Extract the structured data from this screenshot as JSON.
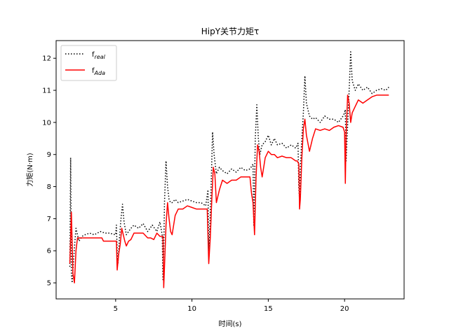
{
  "chart_data": {
    "type": "line",
    "title": "HipY关节力矩τ",
    "xlabel": "时间(s)",
    "ylabel": "力矩(N·m)",
    "xlim": [
      1.1,
      23.9
    ],
    "ylim": [
      4.5,
      12.55
    ],
    "xticks": [
      5,
      10,
      15,
      20
    ],
    "yticks": [
      5,
      6,
      7,
      8,
      9,
      10,
      11,
      12
    ],
    "grid": false,
    "legend_position": "upper-left",
    "series": [
      {
        "name": "f",
        "name_sub": "real",
        "color": "#000000",
        "style": "dotted",
        "x": [
          2.0,
          2.05,
          2.1,
          2.15,
          2.2,
          2.3,
          2.4,
          2.5,
          2.6,
          2.8,
          3.0,
          3.3,
          3.6,
          4.0,
          4.3,
          4.6,
          5.0,
          5.05,
          5.1,
          5.15,
          5.25,
          5.35,
          5.45,
          5.55,
          5.7,
          5.85,
          6.0,
          6.2,
          6.5,
          6.8,
          7.1,
          7.4,
          7.7,
          7.9,
          8.05,
          8.1,
          8.15,
          8.2,
          8.3,
          8.4,
          8.5,
          8.6,
          8.7,
          8.9,
          9.1,
          9.4,
          9.7,
          10.0,
          10.3,
          10.6,
          10.9,
          11.05,
          11.1,
          11.15,
          11.25,
          11.35,
          11.45,
          11.6,
          11.8,
          12.0,
          12.3,
          12.6,
          12.9,
          13.2,
          13.5,
          13.8,
          14.0,
          14.05,
          14.1,
          14.15,
          14.25,
          14.35,
          14.45,
          14.6,
          14.8,
          15.0,
          15.2,
          15.4,
          15.6,
          15.9,
          16.2,
          16.5,
          16.8,
          16.95,
          17.0,
          17.05,
          17.1,
          17.2,
          17.3,
          17.4,
          17.5,
          17.7,
          17.9,
          18.1,
          18.4,
          18.7,
          19.0,
          19.3,
          19.6,
          19.9,
          20.0,
          20.05,
          20.1,
          20.2,
          20.3,
          20.4,
          20.5,
          20.7,
          20.9,
          21.2,
          21.5,
          21.8,
          22.1,
          22.4,
          22.7,
          22.9
        ],
        "values": [
          5.5,
          8.9,
          5.3,
          5.0,
          5.4,
          6.1,
          6.7,
          6.5,
          6.3,
          6.45,
          6.5,
          6.55,
          6.5,
          6.6,
          6.55,
          6.55,
          6.5,
          6.8,
          6.0,
          5.6,
          6.4,
          7.0,
          7.45,
          6.9,
          6.5,
          6.6,
          6.7,
          6.8,
          6.7,
          6.85,
          6.6,
          6.8,
          6.6,
          6.9,
          6.5,
          5.1,
          6.0,
          7.5,
          8.8,
          8.0,
          7.6,
          7.5,
          7.5,
          7.6,
          7.5,
          7.55,
          7.6,
          7.55,
          7.5,
          7.5,
          7.4,
          7.9,
          6.0,
          6.5,
          7.9,
          9.7,
          9.0,
          8.4,
          8.6,
          8.5,
          8.4,
          8.55,
          8.45,
          8.6,
          8.5,
          8.55,
          8.7,
          6.8,
          8.0,
          9.5,
          10.55,
          9.5,
          9.0,
          9.3,
          9.4,
          9.6,
          9.3,
          9.5,
          9.3,
          9.35,
          9.2,
          9.3,
          9.2,
          9.35,
          8.0,
          7.6,
          8.6,
          9.5,
          10.3,
          11.45,
          10.6,
          10.2,
          10.1,
          10.15,
          10.0,
          10.2,
          10.1,
          10.1,
          10.0,
          10.2,
          10.3,
          10.4,
          8.8,
          9.9,
          11.0,
          12.2,
          11.3,
          11.0,
          11.2,
          11.0,
          11.1,
          10.9,
          11.0,
          11.05,
          11.0,
          11.1
        ]
      },
      {
        "name": "f",
        "name_sub": "Ada",
        "color": "#ff0000",
        "style": "solid",
        "x": [
          2.0,
          2.1,
          2.2,
          2.3,
          2.4,
          2.5,
          2.7,
          3.0,
          3.3,
          3.6,
          3.9,
          4.1,
          4.2,
          4.6,
          5.0,
          5.05,
          5.1,
          5.2,
          5.3,
          5.4,
          5.5,
          5.6,
          5.7,
          5.85,
          6.0,
          6.2,
          6.5,
          6.8,
          7.1,
          7.3,
          7.5,
          7.7,
          7.9,
          8.0,
          8.1,
          8.15,
          8.2,
          8.3,
          8.4,
          8.5,
          8.6,
          8.7,
          8.9,
          9.1,
          9.4,
          9.7,
          10.0,
          10.3,
          10.6,
          10.9,
          11.0,
          11.1,
          11.2,
          11.3,
          11.4,
          11.5,
          11.6,
          11.8,
          12.0,
          12.3,
          12.6,
          12.9,
          13.2,
          13.5,
          13.8,
          13.9,
          14.0,
          14.05,
          14.1,
          14.2,
          14.3,
          14.4,
          14.5,
          14.6,
          14.8,
          15.0,
          15.2,
          15.4,
          15.6,
          15.9,
          16.2,
          16.5,
          16.8,
          16.9,
          17.0,
          17.05,
          17.1,
          17.2,
          17.3,
          17.4,
          17.5,
          17.7,
          17.9,
          18.1,
          18.4,
          18.7,
          19.0,
          19.3,
          19.6,
          19.9,
          20.0,
          20.05,
          20.1,
          20.2,
          20.3,
          20.4,
          20.5,
          20.7,
          20.9,
          21.2,
          21.5,
          21.8,
          22.1,
          22.4,
          22.7,
          22.9
        ],
        "values": [
          5.6,
          7.2,
          5.3,
          5.0,
          6.0,
          6.4,
          6.4,
          6.4,
          6.4,
          6.4,
          6.4,
          6.4,
          6.3,
          6.3,
          6.3,
          6.3,
          5.4,
          5.9,
          6.2,
          6.7,
          6.5,
          6.3,
          6.15,
          6.3,
          6.35,
          6.55,
          6.55,
          6.55,
          6.4,
          6.4,
          6.35,
          6.55,
          6.45,
          6.45,
          6.45,
          4.85,
          5.5,
          6.8,
          7.5,
          7.0,
          6.6,
          6.5,
          7.1,
          7.3,
          7.3,
          7.4,
          7.35,
          7.3,
          7.3,
          7.3,
          7.3,
          5.6,
          6.4,
          7.6,
          8.6,
          8.4,
          7.5,
          7.9,
          8.2,
          8.1,
          8.2,
          8.2,
          8.3,
          8.3,
          8.3,
          7.8,
          7.5,
          7.0,
          6.5,
          8.3,
          9.3,
          9.1,
          8.6,
          8.3,
          8.9,
          9.1,
          9.0,
          9.0,
          8.9,
          8.95,
          8.9,
          8.9,
          8.8,
          8.8,
          8.7,
          7.3,
          7.6,
          8.9,
          9.8,
          10.1,
          9.6,
          9.1,
          9.5,
          9.8,
          9.75,
          9.8,
          9.75,
          9.85,
          9.9,
          9.85,
          9.7,
          8.1,
          9.6,
          10.85,
          10.6,
          10.0,
          10.3,
          10.5,
          10.7,
          10.6,
          10.7,
          10.8,
          10.85,
          10.85,
          10.85,
          10.85
        ]
      }
    ]
  }
}
